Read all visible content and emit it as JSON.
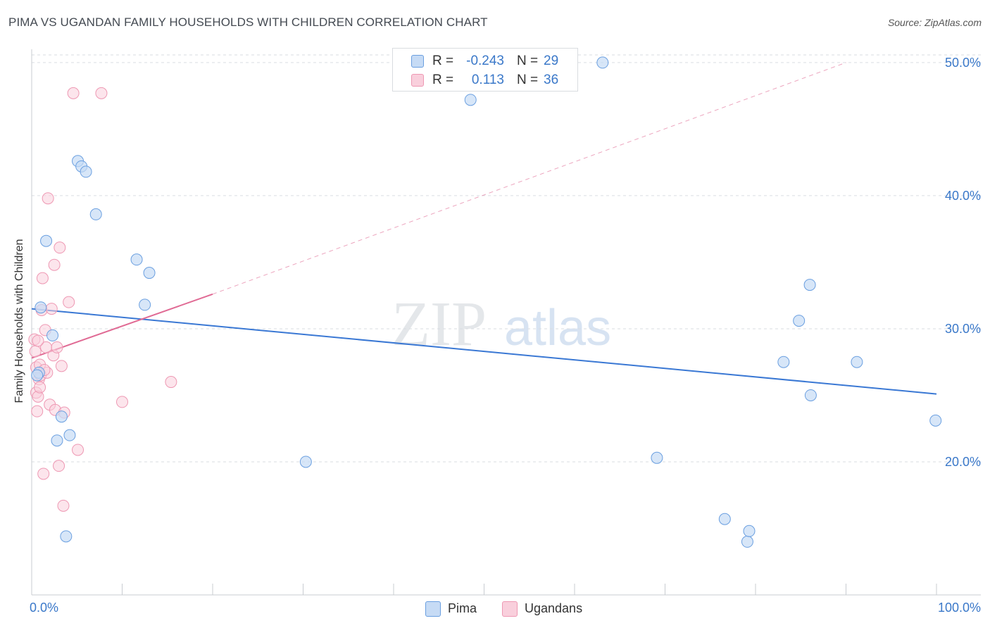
{
  "title": "PIMA VS UGANDAN FAMILY HOUSEHOLDS WITH CHILDREN CORRELATION CHART",
  "source": "Source: ZipAtlas.com",
  "watermark": {
    "zip": "ZIP",
    "atlas": "atlas"
  },
  "legend_top": {
    "rows": [
      {
        "r_label": "R =",
        "r_value": "-0.243",
        "n_label": "N =",
        "n_value": "29"
      },
      {
        "r_label": "R =",
        "r_value": "0.113",
        "n_label": "N =",
        "n_value": "36"
      }
    ]
  },
  "legend_bottom": {
    "items": [
      "Pima",
      "Ugandans"
    ]
  },
  "colors": {
    "pima_fill": "#c6dbf5",
    "pima_stroke": "#6a9fe0",
    "pima_line": "#3a78d4",
    "ugandan_fill": "#f9cfdc",
    "ugandan_stroke": "#ee98b3",
    "ugandan_line": "#e06a94",
    "axis_label": "#3a78c9",
    "grid": "#d9dde2"
  },
  "chart_data": {
    "type": "scatter",
    "title": "PIMA VS UGANDAN FAMILY HOUSEHOLDS WITH CHILDREN CORRELATION CHART",
    "xlabel": "",
    "ylabel": "Family Households with Children",
    "xlim": [
      0,
      100
    ],
    "ylim": [
      10,
      51
    ],
    "x_tick_labels": [
      "0.0%",
      "100.0%"
    ],
    "y_ticks": [
      20,
      30,
      40,
      50
    ],
    "y_tick_labels": [
      "20.0%",
      "30.0%",
      "40.0%",
      "50.0%"
    ],
    "series": [
      {
        "name": "Pima",
        "r": -0.243,
        "n": 29,
        "trend": {
          "x": [
            0,
            100
          ],
          "y": [
            31.5,
            25.1
          ],
          "style": "solid"
        },
        "points": [
          [
            0.8,
            26.7
          ],
          [
            1.0,
            31.6
          ],
          [
            1.6,
            36.6
          ],
          [
            2.3,
            29.5
          ],
          [
            2.8,
            21.6
          ],
          [
            3.3,
            23.4
          ],
          [
            3.8,
            14.4
          ],
          [
            4.2,
            22.0
          ],
          [
            5.1,
            42.6
          ],
          [
            5.5,
            42.2
          ],
          [
            6.0,
            41.8
          ],
          [
            7.1,
            38.6
          ],
          [
            11.6,
            35.2
          ],
          [
            12.5,
            31.8
          ],
          [
            13.0,
            34.2
          ],
          [
            30.3,
            20.0
          ],
          [
            48.5,
            47.2
          ],
          [
            63.1,
            50.0
          ],
          [
            69.1,
            20.3
          ],
          [
            76.6,
            15.7
          ],
          [
            79.1,
            14.0
          ],
          [
            79.3,
            14.8
          ],
          [
            83.1,
            27.5
          ],
          [
            84.8,
            30.6
          ],
          [
            86.0,
            33.3
          ],
          [
            86.1,
            25.0
          ],
          [
            91.2,
            27.5
          ],
          [
            99.9,
            23.1
          ],
          [
            0.6,
            26.5
          ]
        ]
      },
      {
        "name": "Ugandans",
        "r": 0.113,
        "n": 36,
        "trend": {
          "x": [
            0,
            20
          ],
          "y": [
            27.8,
            32.6
          ],
          "style": "solid",
          "extended_x": [
            20,
            90
          ],
          "extended_y": [
            32.6,
            50.0
          ],
          "extended_style": "dashed"
        },
        "points": [
          [
            0.3,
            29.2
          ],
          [
            0.4,
            28.3
          ],
          [
            0.5,
            25.2
          ],
          [
            0.6,
            23.8
          ],
          [
            0.7,
            24.9
          ],
          [
            0.8,
            26.2
          ],
          [
            0.9,
            25.6
          ],
          [
            1.0,
            26.5
          ],
          [
            1.1,
            31.4
          ],
          [
            1.2,
            33.8
          ],
          [
            1.3,
            19.1
          ],
          [
            1.5,
            29.9
          ],
          [
            1.6,
            28.6
          ],
          [
            1.7,
            26.7
          ],
          [
            1.8,
            39.8
          ],
          [
            2.0,
            24.3
          ],
          [
            2.2,
            31.5
          ],
          [
            2.4,
            28.0
          ],
          [
            2.5,
            34.8
          ],
          [
            2.6,
            23.9
          ],
          [
            2.8,
            28.6
          ],
          [
            3.0,
            19.7
          ],
          [
            3.1,
            36.1
          ],
          [
            3.3,
            27.2
          ],
          [
            3.5,
            16.7
          ],
          [
            3.6,
            23.7
          ],
          [
            4.1,
            32.0
          ],
          [
            4.6,
            47.7
          ],
          [
            5.1,
            20.9
          ],
          [
            7.7,
            47.7
          ],
          [
            10.0,
            24.5
          ],
          [
            15.4,
            26.0
          ],
          [
            0.5,
            27.1
          ],
          [
            0.9,
            27.3
          ],
          [
            1.4,
            26.9
          ],
          [
            0.7,
            29.1
          ]
        ]
      }
    ]
  }
}
